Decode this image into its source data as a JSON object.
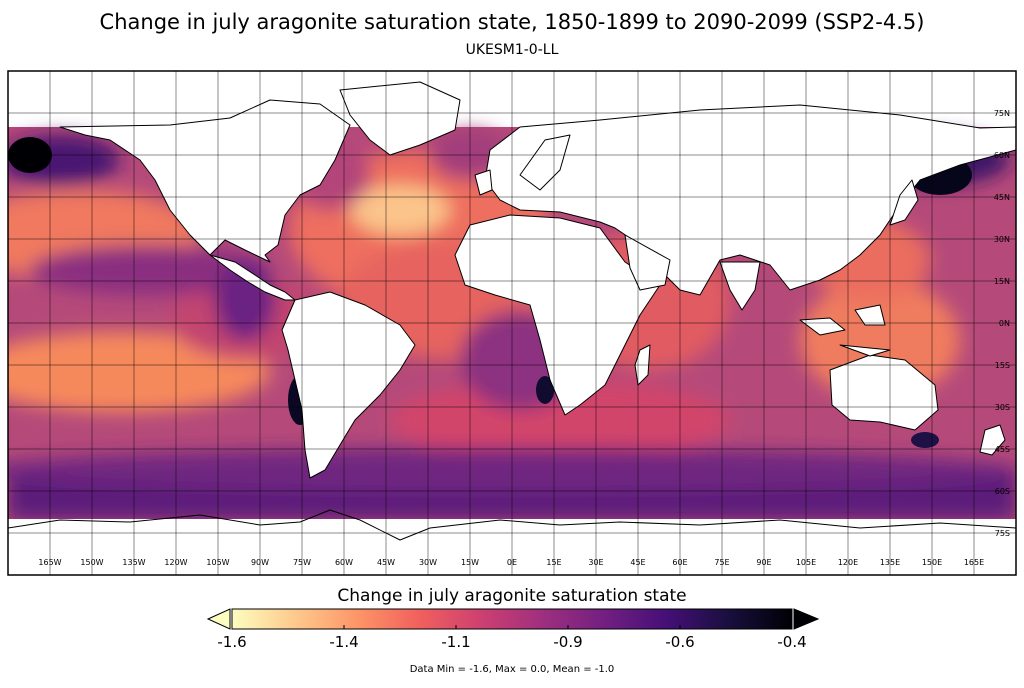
{
  "title": "Change in july aragonite saturation state, 1850-1899 to 2090-2099 (SSP2-4.5)",
  "subtitle": "UKESM1-0-LL",
  "map": {
    "projection": "PlateCarree",
    "lon_range": [
      -180,
      180
    ],
    "lat_range": [
      -90,
      90
    ],
    "data_lat_range": [
      -72,
      75
    ],
    "gridlines": true,
    "lon_tick_labels": [
      "165W",
      "150W",
      "135W",
      "120W",
      "105W",
      "90W",
      "75W",
      "60W",
      "45W",
      "30W",
      "15W",
      "0E",
      "15E",
      "30E",
      "45E",
      "60E",
      "75E",
      "90E",
      "105E",
      "120E",
      "135E",
      "150E",
      "165E"
    ],
    "lat_tick_labels": [
      "75N",
      "60N",
      "45N",
      "30N",
      "15N",
      "0N",
      "15S",
      "30S",
      "45S",
      "60S",
      "75S"
    ],
    "land_color": "#ffffff",
    "coastline_color": "#000000"
  },
  "colorbar": {
    "title": "Change in july aragonite saturation state",
    "tick_labels": [
      "-1.6",
      "-1.4",
      "-1.1",
      "-0.9",
      "-0.6",
      "-0.4"
    ],
    "tick_values": [
      -1.6,
      -1.35,
      -1.1,
      -0.85,
      -0.6,
      -0.35
    ],
    "range": [
      -1.6,
      -0.35
    ],
    "colormap": "magma_r",
    "colors": [
      "#fcfdbf",
      "#feca8d",
      "#fd9668",
      "#f1605d",
      "#cd4071",
      "#9e2f7f",
      "#721f81",
      "#440f76",
      "#180f3d",
      "#000004"
    ],
    "extend": "both",
    "under_color": "#fcfdbf",
    "over_color": "#000004"
  },
  "stats": "Data Min = -1.6, Max = 0.0, Mean = -1.0"
}
